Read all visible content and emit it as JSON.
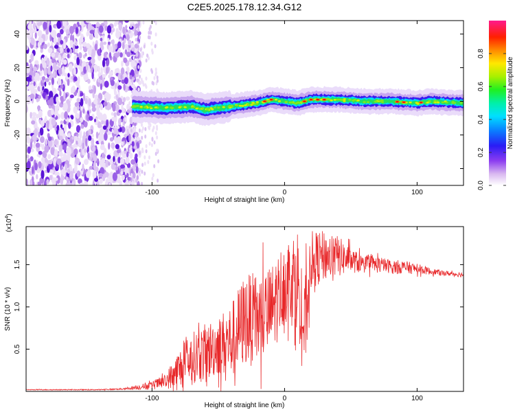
{
  "title": "C2E5.2025.178.12.34.G12",
  "colors": {
    "snr_line": "#e8282a",
    "dot_purple": "#6a1fe0",
    "frame": "#000000"
  },
  "chart_data": [
    {
      "type": "heatmap",
      "xlabel": "Height of straight line (km)",
      "ylabel": "Frequency (Hz)",
      "xlim": [
        -195,
        135
      ],
      "ylim": [
        -50,
        48
      ],
      "x_ticks": [
        -100,
        0,
        100
      ],
      "x_tick_labels": [
        "-100",
        "0",
        "100"
      ],
      "y_ticks": [
        -40,
        -20,
        0,
        20,
        40
      ],
      "y_tick_labels": [
        "-40",
        "-20",
        "0",
        "20",
        "40"
      ],
      "colorbar": {
        "label": "Normalized spectral amplitude",
        "range": [
          0,
          1
        ],
        "ticks": [
          0.0,
          0.2,
          0.4,
          0.6,
          0.8
        ],
        "tick_labels": [
          "0.0",
          "0.2",
          "0.4",
          "0.6",
          "0.8"
        ],
        "colormap": "rainbow (white-purple-blue-cyan-green-yellow-red-magenta)"
      },
      "noise_region_x": [
        -195,
        -115
      ],
      "signal_band": {
        "x": [
          -115,
          -90,
          -70,
          -60,
          -50,
          -40,
          -30,
          -20,
          -10,
          0,
          10,
          20,
          40,
          60,
          80,
          100,
          110,
          135
        ],
        "freq_hz": [
          -3,
          -4,
          -3,
          -5,
          -4,
          -3,
          -2,
          -1,
          1,
          0,
          -1,
          1,
          1,
          0,
          0,
          -1,
          0,
          -1
        ],
        "peak_amplitude_x": [
          -15,
          -10,
          15,
          20,
          25,
          30,
          85,
          90,
          103
        ]
      }
    },
    {
      "type": "line",
      "xlabel": "Height of straight line (km)",
      "ylabel": "SNR (10 * v/v)",
      "y_scale_note": "(x10^4)",
      "xlim": [
        -195,
        135
      ],
      "ylim": [
        0,
        1.95
      ],
      "x_ticks": [
        -100,
        0,
        100
      ],
      "x_tick_labels": [
        "-100",
        "0",
        "100"
      ],
      "y_ticks": [
        0.5,
        1.0,
        1.5
      ],
      "y_tick_labels": [
        "0.5",
        "1.0",
        "1.5"
      ],
      "series": [
        {
          "x": [
            -195,
            -180,
            -160,
            -140,
            -120,
            -100,
            -90,
            -80,
            -70,
            -60,
            -50,
            -40,
            -30,
            -20,
            -10,
            0,
            10,
            15,
            20,
            30,
            40,
            50,
            60,
            70,
            80,
            90,
            100,
            110,
            120,
            135
          ],
          "y": [
            0.02,
            0.02,
            0.02,
            0.02,
            0.03,
            0.07,
            0.12,
            0.25,
            0.4,
            0.45,
            0.55,
            0.6,
            0.85,
            0.85,
            0.95,
            1.3,
            1.35,
            0.7,
            1.55,
            1.6,
            1.6,
            1.55,
            1.5,
            1.5,
            1.48,
            1.47,
            1.45,
            1.42,
            1.4,
            1.38
          ],
          "noise_amplitude": [
            0.005,
            0.005,
            0.005,
            0.005,
            0.01,
            0.05,
            0.08,
            0.25,
            0.3,
            0.35,
            0.35,
            0.45,
            0.55,
            0.55,
            0.55,
            0.5,
            0.6,
            0.6,
            0.35,
            0.3,
            0.25,
            0.15,
            0.1,
            0.1,
            0.08,
            0.08,
            0.06,
            0.04,
            0.03,
            0.03
          ]
        }
      ]
    }
  ]
}
